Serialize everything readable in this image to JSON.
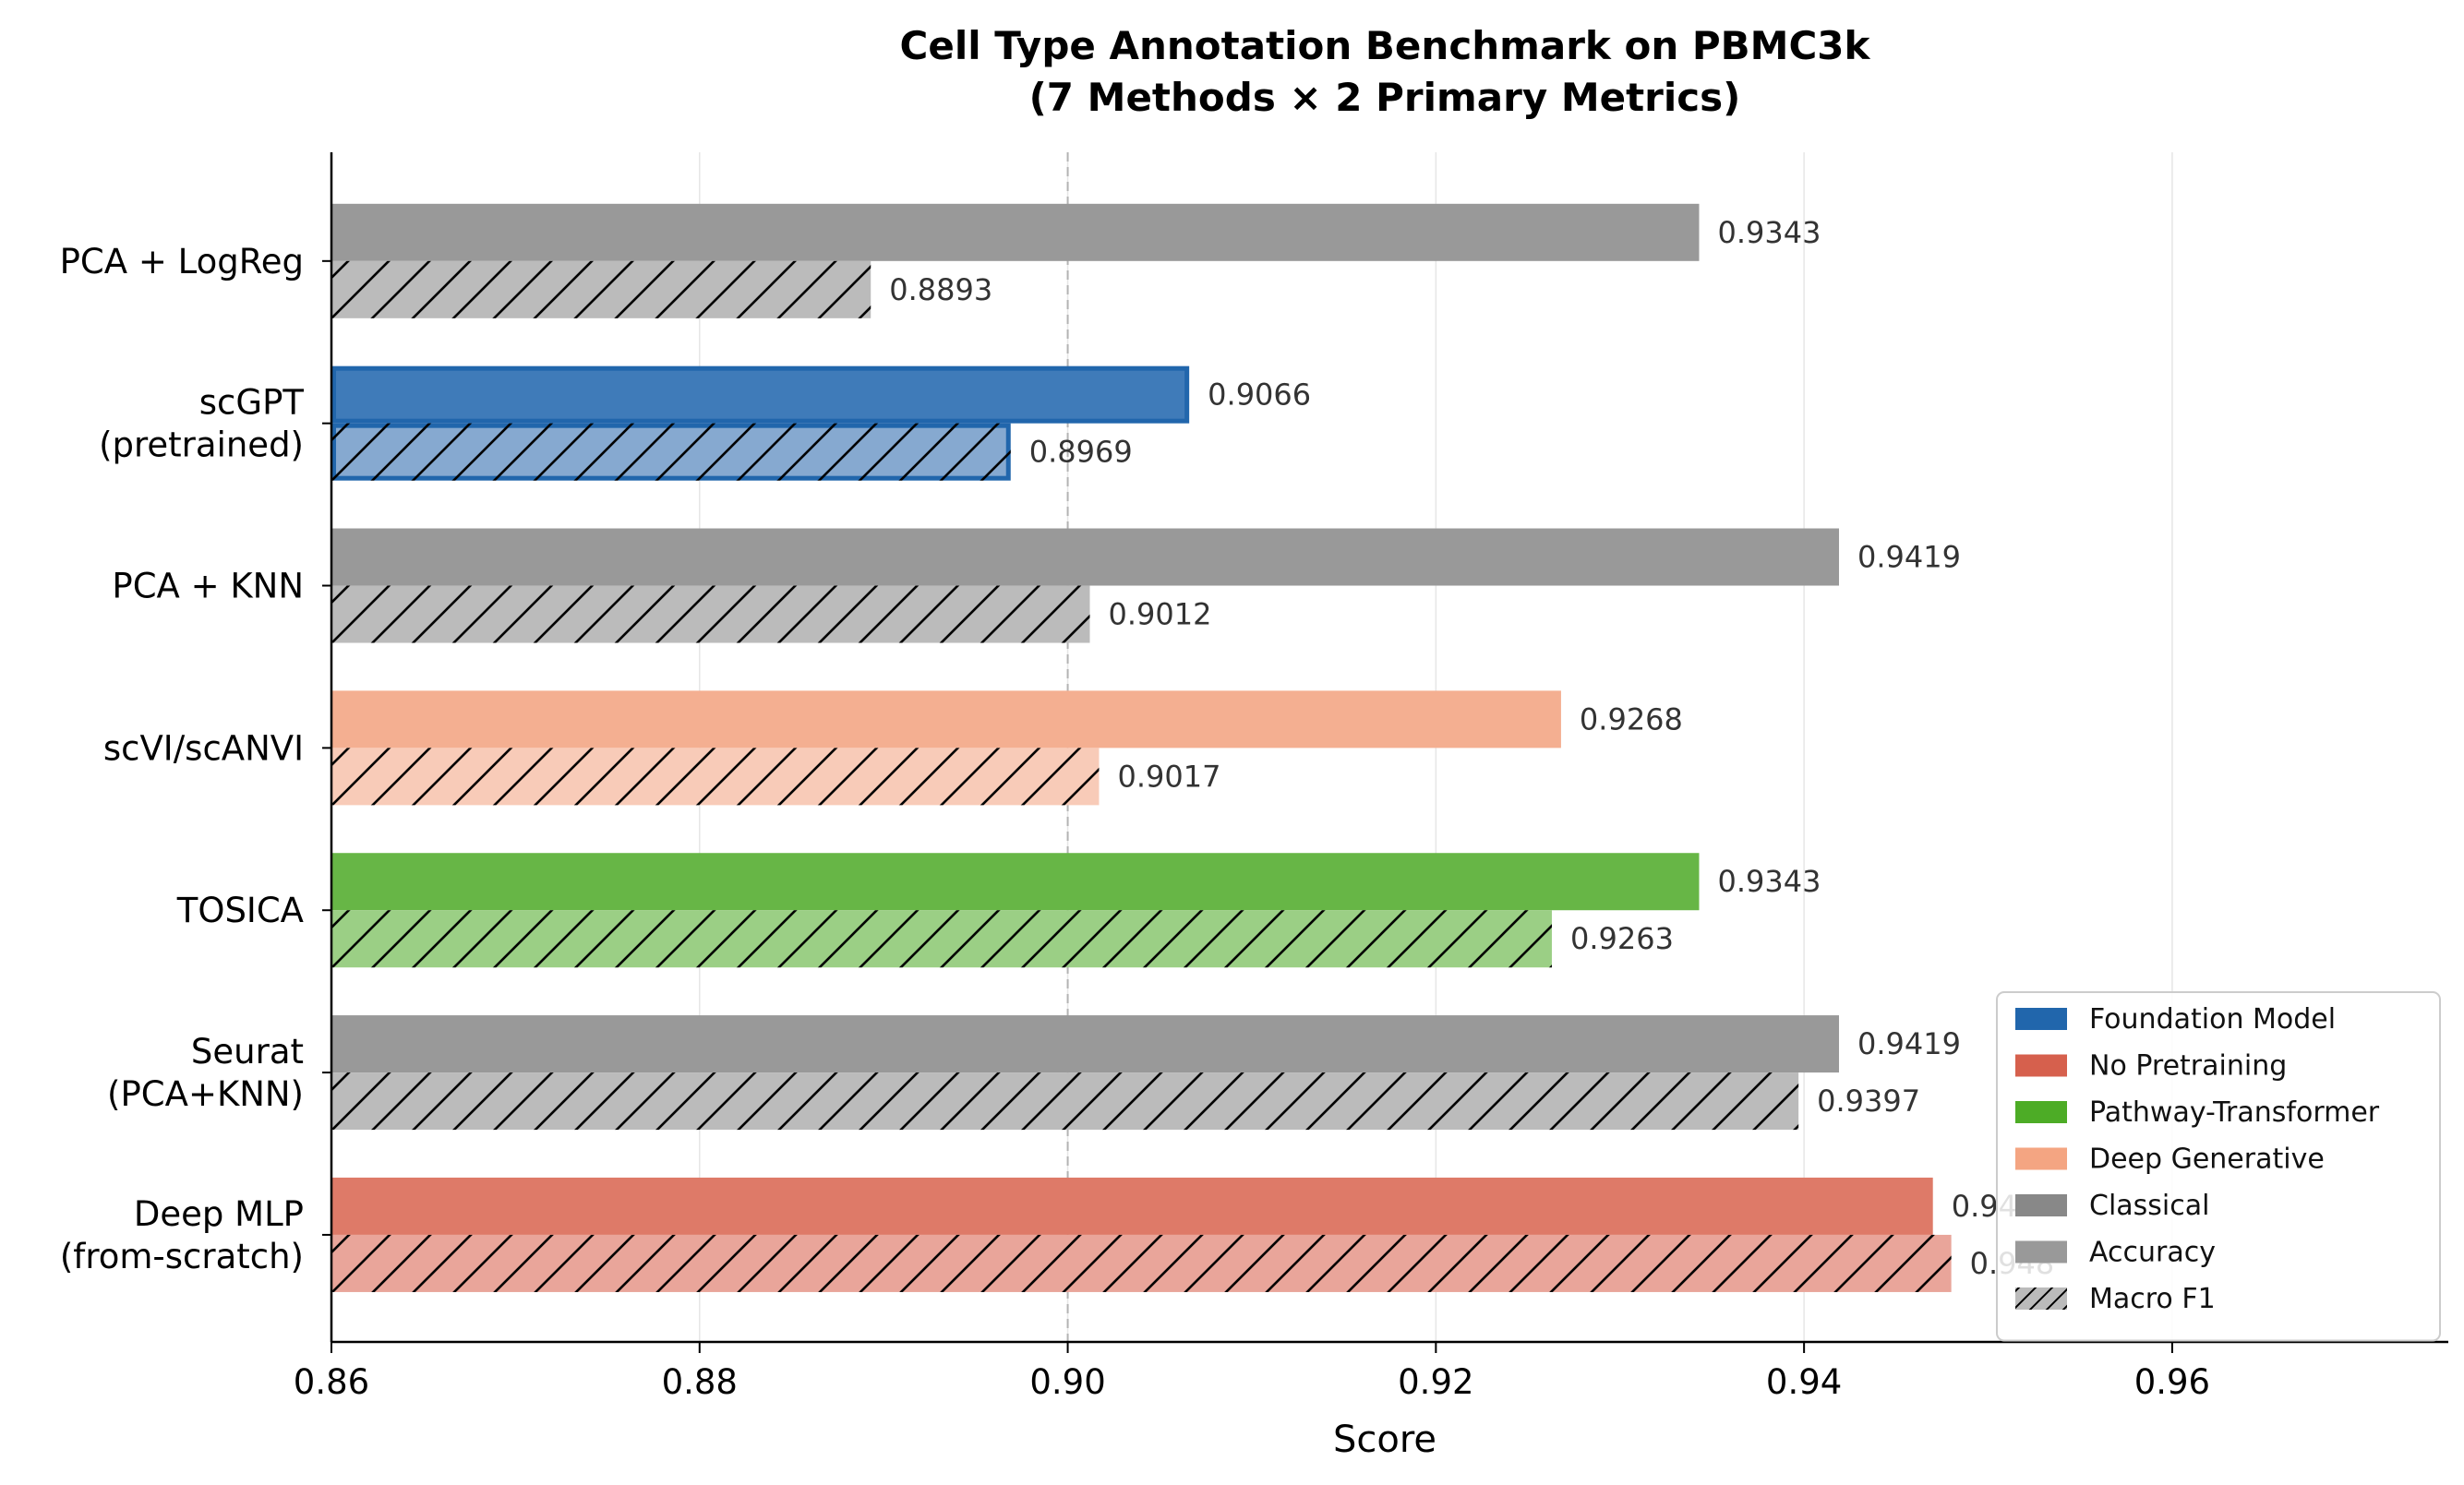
{
  "chart_data": {
    "type": "bar",
    "orientation": "horizontal",
    "title_lines": [
      "Cell Type Annotation Benchmark on PBMC3k",
      "(7 Methods × 2 Primary Metrics)"
    ],
    "xlabel": "Score",
    "ylabel": "",
    "xlim": [
      0.86,
      0.975
    ],
    "xticks": [
      0.86,
      0.88,
      0.9,
      0.92,
      0.94,
      0.96
    ],
    "xtick_labels": [
      "0.86",
      "0.88",
      "0.90",
      "0.92",
      "0.94",
      "0.96"
    ],
    "grid": "x-axis vertical gridlines",
    "reference_line": 0.9,
    "categories": [
      {
        "lines": [
          "PCA + LogReg"
        ],
        "group": "Classical",
        "highlight": false
      },
      {
        "lines": [
          "scGPT",
          "(pretrained)"
        ],
        "group": "Foundation Model",
        "highlight": true
      },
      {
        "lines": [
          "PCA + KNN"
        ],
        "group": "Classical",
        "highlight": false
      },
      {
        "lines": [
          "scVI/scANVI"
        ],
        "group": "Deep Generative",
        "highlight": false
      },
      {
        "lines": [
          "TOSICA"
        ],
        "group": "Pathway-Transformer",
        "highlight": false
      },
      {
        "lines": [
          "Seurat",
          "(PCA+KNN)"
        ],
        "group": "Classical",
        "highlight": false
      },
      {
        "lines": [
          "Deep MLP",
          "(from-scratch)"
        ],
        "group": "No Pretraining",
        "highlight": false
      }
    ],
    "series": [
      {
        "name": "Accuracy",
        "hatch": false,
        "values": [
          0.9343,
          0.9066,
          0.9419,
          0.9268,
          0.9343,
          0.9419,
          0.947
        ]
      },
      {
        "name": "Macro F1",
        "hatch": true,
        "values": [
          0.8893,
          0.8969,
          0.9012,
          0.9017,
          0.9263,
          0.9397,
          0.948
        ]
      }
    ],
    "value_labels": {
      "Accuracy": [
        "0.9343",
        "0.9066",
        "0.9419",
        "0.9268",
        "0.9343",
        "0.9419",
        "0.947"
      ],
      "Macro F1": [
        "0.8893",
        "0.8969",
        "0.9012",
        "0.9017",
        "0.9263",
        "0.9397",
        "0.948"
      ]
    },
    "group_colors": {
      "Foundation Model": {
        "acc": "#3f7bb9",
        "f1": "#86a9d0",
        "legend": "#2166ac",
        "edge": "#2166ac"
      },
      "No Pretraining": {
        "acc": "#de7a68",
        "f1": "#e9a59a",
        "legend": "#d6604d"
      },
      "Pathway-Transformer": {
        "acc": "#67b646",
        "f1": "#9bcf85",
        "legend": "#4dac26"
      },
      "Deep Generative": {
        "acc": "#f4af91",
        "f1": "#f8cbb8",
        "legend": "#f4a582"
      },
      "Classical": {
        "acc": "#999999",
        "f1": "#bbbbbb",
        "legend": "#888888"
      }
    },
    "legend": {
      "placement": "lower-right",
      "entries": [
        {
          "label": "Foundation Model",
          "color": "#2166ac",
          "hatch": false
        },
        {
          "label": "No Pretraining",
          "color": "#d6604d",
          "hatch": false
        },
        {
          "label": "Pathway-Transformer",
          "color": "#4dac26",
          "hatch": false
        },
        {
          "label": "Deep Generative",
          "color": "#f4a582",
          "hatch": false
        },
        {
          "label": "Classical",
          "color": "#888888",
          "hatch": false
        },
        {
          "label": "Accuracy",
          "color": "#999999",
          "hatch": false
        },
        {
          "label": "Macro F1",
          "color": "#bbbbbb",
          "hatch": true
        }
      ]
    }
  }
}
